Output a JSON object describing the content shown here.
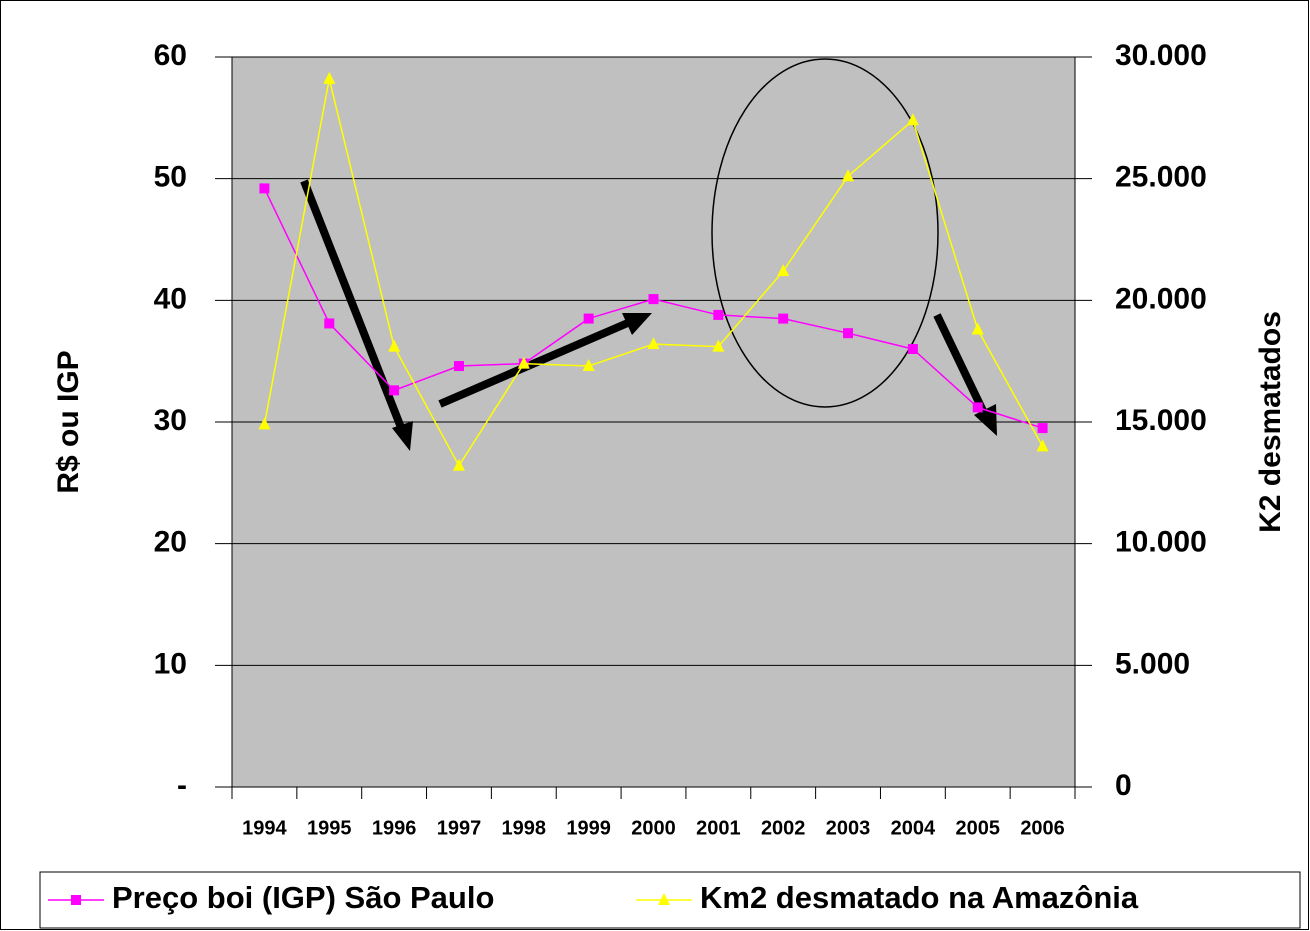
{
  "chart_data": {
    "type": "line",
    "categories": [
      "1994",
      "1995",
      "1996",
      "1997",
      "1998",
      "1999",
      "2000",
      "2001",
      "2002",
      "2003",
      "2004",
      "2005",
      "2006"
    ],
    "series": [
      {
        "name": "Preço boi (IGP) São Paulo",
        "color": "#ff00ff",
        "marker": "square",
        "values": [
          49.2,
          38.1,
          32.6,
          34.6,
          34.8,
          38.5,
          40.1,
          38.8,
          38.5,
          37.3,
          36.0,
          31.2,
          29.5
        ]
      },
      {
        "name": "Km2 desmatado na Amazônia",
        "color": "#ffff00",
        "marker": "triangle",
        "axis": "y2",
        "values": [
          14900,
          29100,
          18100,
          13200,
          17400,
          17300,
          18200,
          18100,
          21200,
          25100,
          27400,
          18800,
          14000
        ]
      }
    ],
    "ylabel": "R$ ou IGP",
    "y2label": "K2 desmatados",
    "ylim": [
      0,
      60
    ],
    "yticks": [
      {
        "value": 0,
        "label": "-"
      },
      10,
      20,
      30,
      40,
      50,
      60
    ],
    "y2lim": [
      0,
      30000
    ],
    "y2ticks": [
      0,
      {
        "value": 5000,
        "label": "5.000"
      },
      {
        "value": 10000,
        "label": "10.000"
      },
      {
        "value": 15000,
        "label": "15.000"
      },
      {
        "value": 20000,
        "label": "20.000"
      },
      {
        "value": 25000,
        "label": "25.000"
      },
      {
        "value": 30000,
        "label": "30.000"
      }
    ],
    "grid": true,
    "legend": "bottom",
    "background": "#c0c0c0"
  }
}
